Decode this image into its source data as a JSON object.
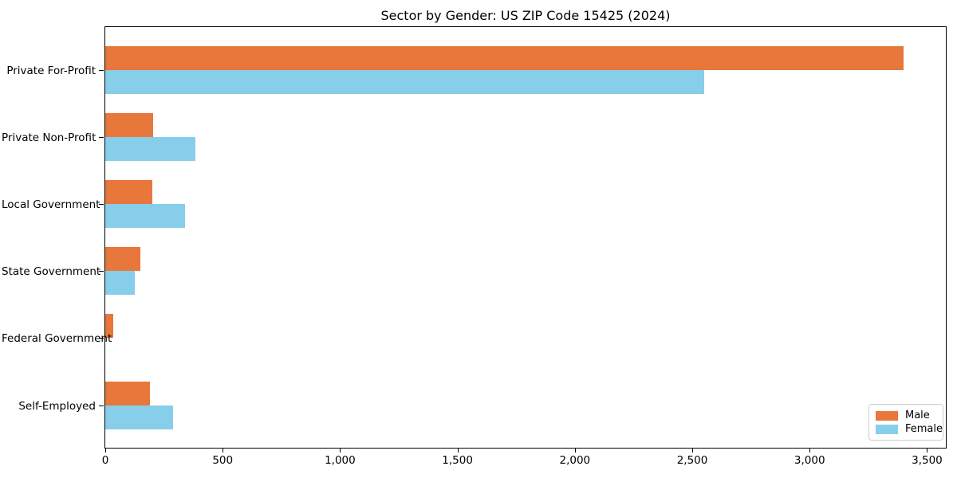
{
  "title": "Sector by Gender: US ZIP Code 15425 (2024)",
  "chart_data": {
    "type": "bar",
    "orientation": "horizontal",
    "title": "Sector by Gender: US ZIP Code 15425 (2024)",
    "xlabel": "",
    "ylabel": "",
    "categories": [
      "Private For-Profit",
      "Private Non-Profit",
      "Local Government",
      "State Government",
      "Federal Government",
      "Self-Employed"
    ],
    "series": [
      {
        "name": "Male",
        "color": "#e8773c",
        "values": [
          3400,
          205,
          200,
          150,
          35,
          190
        ]
      },
      {
        "name": "Female",
        "color": "#87ceeb",
        "values": [
          2550,
          385,
          340,
          125,
          0,
          290
        ]
      }
    ],
    "xlim": [
      0,
      3580
    ],
    "x_ticks": [
      0,
      500,
      1000,
      1500,
      2000,
      2500,
      3000,
      3500
    ],
    "x_tick_labels": [
      "0",
      "500",
      "1,000",
      "1,500",
      "2,000",
      "2,500",
      "3,000",
      "3,500"
    ],
    "grid": false,
    "legend_position": "lower right"
  },
  "legend": {
    "male_label": "Male",
    "female_label": "Female"
  },
  "colors": {
    "male": "#e8773c",
    "female": "#87ceeb",
    "axis": "#000000",
    "legend_border": "#cccccc",
    "background": "#ffffff"
  }
}
